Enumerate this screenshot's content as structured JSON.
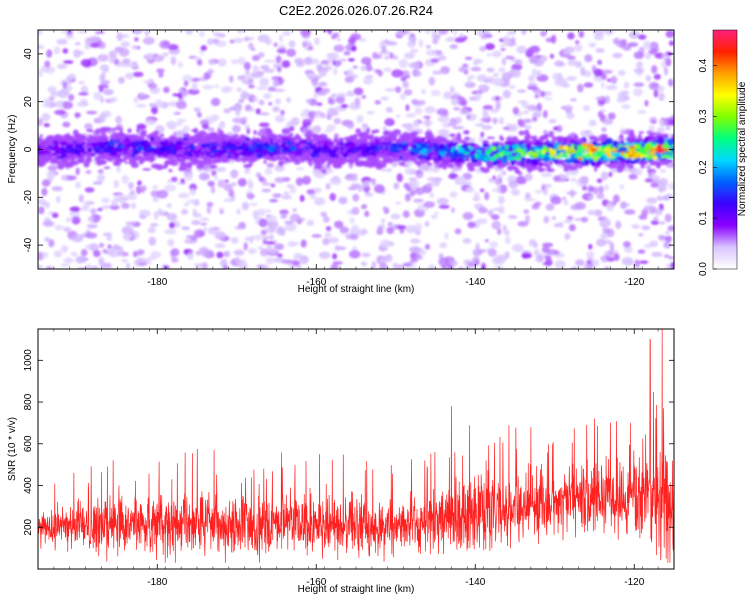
{
  "title": "C2E2.2026.026.07.26.R24",
  "chart_data": [
    {
      "type": "heatmap",
      "xlabel": "Height of straight line (km)",
      "ylabel": "Frequency (Hz)",
      "xlim": [
        -195,
        -115
      ],
      "ylim": [
        -50,
        50
      ],
      "xticks": [
        -180,
        -160,
        -140,
        -120
      ],
      "yticks": [
        -40,
        -20,
        0,
        20,
        40
      ],
      "ridge": {
        "description_values": "energy concentrated near 0 Hz across all heights; amplitude rises toward lower heights",
        "center_hz": [
          [
            -195,
            0
          ],
          [
            -185,
            1
          ],
          [
            -175,
            0
          ],
          [
            -165,
            1
          ],
          [
            -158,
            -1
          ],
          [
            -150,
            1
          ],
          [
            -140,
            -2
          ],
          [
            -130,
            -1
          ],
          [
            -120,
            -1
          ],
          [
            -115,
            0
          ]
        ],
        "peak_amplitude": [
          [
            -195,
            0.12
          ],
          [
            -185,
            0.17
          ],
          [
            -175,
            0.15
          ],
          [
            -165,
            0.18
          ],
          [
            -155,
            0.14
          ],
          [
            -145,
            0.22
          ],
          [
            -135,
            0.32
          ],
          [
            -128,
            0.4
          ],
          [
            -122,
            0.43
          ],
          [
            -117,
            0.46
          ]
        ]
      },
      "colorbar": {
        "label": "Normalized spectral amplitude",
        "range": [
          0.0,
          0.47
        ],
        "ticks": [
          0.0,
          0.1,
          0.2,
          0.3,
          0.4
        ],
        "tick_labels": [
          "0.0",
          "0.1",
          "0.2",
          "0.3",
          "0.4"
        ],
        "colors": [
          "#ffffff",
          "#d9c6ff",
          "#8a00ff",
          "#3c00ff",
          "#0060ff",
          "#00d8ff",
          "#00ff80",
          "#80ff00",
          "#ffff00",
          "#ffa000",
          "#ff2000",
          "#ff2080"
        ]
      }
    },
    {
      "type": "line",
      "xlabel": "Height of straight line (km)",
      "ylabel": "SNR (10 * v/v)",
      "xlim": [
        -195,
        -115
      ],
      "ylim": [
        0,
        1150
      ],
      "xticks": [
        -180,
        -160,
        -140,
        -120
      ],
      "yticks": [
        200,
        400,
        600,
        800,
        1000
      ],
      "series_color": "#ff2020",
      "envelope": {
        "x": [
          -195,
          -185,
          -175,
          -165,
          -155,
          -150,
          -145,
          -140,
          -135,
          -130,
          -125,
          -120,
          -118,
          -116,
          -115
        ],
        "mean": [
          200,
          210,
          215,
          220,
          195,
          200,
          240,
          270,
          300,
          320,
          330,
          340,
          350,
          330,
          300
        ],
        "max": [
          390,
          550,
          580,
          560,
          550,
          500,
          600,
          780,
          700,
          720,
          700,
          780,
          880,
          1150,
          820
        ]
      },
      "spikes": [
        {
          "x": -143,
          "y": 780
        },
        {
          "x": -133,
          "y": 680
        },
        {
          "x": -125,
          "y": 720
        },
        {
          "x": -120.5,
          "y": 700
        },
        {
          "x": -118,
          "y": 1100
        },
        {
          "x": -116.5,
          "y": 1150
        }
      ]
    }
  ]
}
